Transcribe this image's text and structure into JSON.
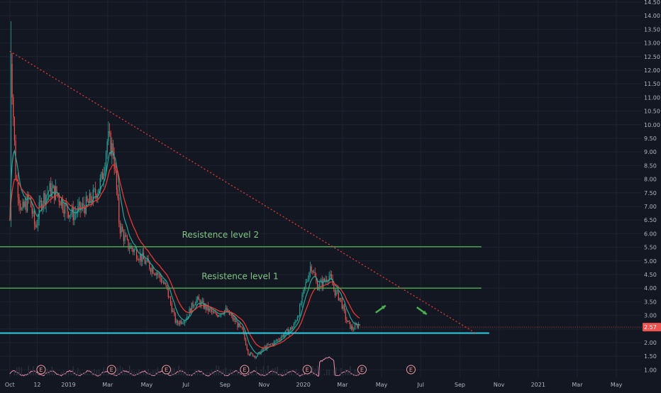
{
  "chart_data": {
    "type": "candlestick",
    "title": "",
    "xlabel": "",
    "ylabel": "",
    "ylim": [
      0.75,
      14.5
    ],
    "grid": true,
    "colors": {
      "background": "#131722",
      "grid": "#1e2230",
      "up": "#26a69a",
      "down": "#ef5350",
      "ema_fast": "#26a69a",
      "ema_slow": "#e53935",
      "level_line": "#4caf50",
      "support_line": "#26c6da",
      "trendline": "#e53935",
      "price_tag": "#ef5350",
      "axis_text": "#b2b5be",
      "volume_line": "#f48fb1",
      "annotation": "#81c784",
      "arrow": "#4caf50"
    },
    "y_ticks": [
      "1.00",
      "1.50",
      "2.00",
      "2.50",
      "3.00",
      "3.50",
      "4.00",
      "4.50",
      "5.00",
      "5.50",
      "6.00",
      "6.50",
      "7.00",
      "7.50",
      "8.00",
      "8.50",
      "9.00",
      "9.50",
      "10.00",
      "10.50",
      "11.00",
      "11.50",
      "12.00",
      "12.50",
      "13.00",
      "13.50",
      "14.00",
      "14.50"
    ],
    "x_ticks": [
      {
        "label": "Oct",
        "t": 0
      },
      {
        "label": "12",
        "t": 1.4
      },
      {
        "label": "2019",
        "t": 3
      },
      {
        "label": "Mar",
        "t": 5
      },
      {
        "label": "May",
        "t": 7
      },
      {
        "label": "Jul",
        "t": 9
      },
      {
        "label": "Sep",
        "t": 11
      },
      {
        "label": "Nov",
        "t": 13
      },
      {
        "label": "2020",
        "t": 15
      },
      {
        "label": "Mar",
        "t": 17
      },
      {
        "label": "May",
        "t": 19
      },
      {
        "label": "Jul",
        "t": 21
      },
      {
        "label": "Sep",
        "t": 23
      },
      {
        "label": "Nov",
        "t": 25
      },
      {
        "label": "2021",
        "t": 27
      },
      {
        "label": "Mar",
        "t": 29
      },
      {
        "label": "May",
        "t": 31
      }
    ],
    "x_range": [
      -0.5,
      32.3
    ],
    "key_points": [
      {
        "t": 0.0,
        "v": 6.5
      },
      {
        "t": 0.05,
        "v": 12.7
      },
      {
        "t": 0.3,
        "v": 8.2
      },
      {
        "t": 0.6,
        "v": 6.8
      },
      {
        "t": 1.0,
        "v": 7.3
      },
      {
        "t": 1.3,
        "v": 6.2
      },
      {
        "t": 1.6,
        "v": 7.2
      },
      {
        "t": 2.0,
        "v": 7.6
      },
      {
        "t": 2.4,
        "v": 7.5
      },
      {
        "t": 2.8,
        "v": 7.0
      },
      {
        "t": 3.2,
        "v": 6.7
      },
      {
        "t": 3.6,
        "v": 6.9
      },
      {
        "t": 4.0,
        "v": 7.1
      },
      {
        "t": 4.4,
        "v": 7.5
      },
      {
        "t": 4.7,
        "v": 8.0
      },
      {
        "t": 5.0,
        "v": 9.5
      },
      {
        "t": 5.3,
        "v": 9.0
      },
      {
        "t": 5.6,
        "v": 6.3
      },
      {
        "t": 6.0,
        "v": 5.6
      },
      {
        "t": 6.5,
        "v": 5.3
      },
      {
        "t": 7.0,
        "v": 4.9
      },
      {
        "t": 7.5,
        "v": 4.6
      },
      {
        "t": 8.0,
        "v": 4.0
      },
      {
        "t": 8.5,
        "v": 2.7
      },
      {
        "t": 9.0,
        "v": 2.9
      },
      {
        "t": 9.5,
        "v": 3.6
      },
      {
        "t": 10.0,
        "v": 3.3
      },
      {
        "t": 10.5,
        "v": 3.0
      },
      {
        "t": 11.0,
        "v": 3.2
      },
      {
        "t": 11.5,
        "v": 2.8
      },
      {
        "t": 11.9,
        "v": 2.4
      },
      {
        "t": 12.2,
        "v": 1.6
      },
      {
        "t": 12.6,
        "v": 1.5
      },
      {
        "t": 13.0,
        "v": 1.8
      },
      {
        "t": 13.5,
        "v": 2.0
      },
      {
        "t": 14.0,
        "v": 2.3
      },
      {
        "t": 14.5,
        "v": 2.6
      },
      {
        "t": 14.8,
        "v": 3.2
      },
      {
        "t": 15.1,
        "v": 4.1
      },
      {
        "t": 15.4,
        "v": 4.9
      },
      {
        "t": 15.7,
        "v": 4.1
      },
      {
        "t": 16.0,
        "v": 4.2
      },
      {
        "t": 16.3,
        "v": 4.5
      },
      {
        "t": 16.6,
        "v": 3.9
      },
      {
        "t": 16.9,
        "v": 3.6
      },
      {
        "t": 17.2,
        "v": 2.8
      },
      {
        "t": 17.5,
        "v": 2.5
      },
      {
        "t": 17.9,
        "v": 2.7
      }
    ],
    "levels": [
      {
        "name": "Resistence level 2",
        "value": 5.52,
        "t_end": 24.1,
        "label_t": 8.8,
        "label_dv": 0.33
      },
      {
        "name": "Resistence level 1",
        "value": 4.0,
        "t_end": 24.1,
        "label_t": 9.8,
        "label_dv": 0.33
      }
    ],
    "support": {
      "value": 2.35,
      "t_end": 24.5
    },
    "trendline": {
      "start": {
        "t": 0.0,
        "v": 12.7
      },
      "end": {
        "t": 23.8,
        "v": 2.35
      }
    },
    "current_price": {
      "value": 2.57,
      "label": "2.57"
    },
    "earnings_markers": [
      {
        "label": "E",
        "t": 1.6
      },
      {
        "label": "E",
        "t": 5.2
      },
      {
        "label": "E",
        "t": 8.0
      },
      {
        "label": "E",
        "t": 12.0
      },
      {
        "label": "E",
        "t": 15.2
      },
      {
        "label": "E",
        "t": 18.0
      },
      {
        "label": "E",
        "t": 20.5
      }
    ],
    "arrows": [
      {
        "direction": "up",
        "t": 18.7,
        "v": 3.1
      },
      {
        "direction": "down",
        "t": 20.8,
        "v": 3.3
      }
    ]
  }
}
